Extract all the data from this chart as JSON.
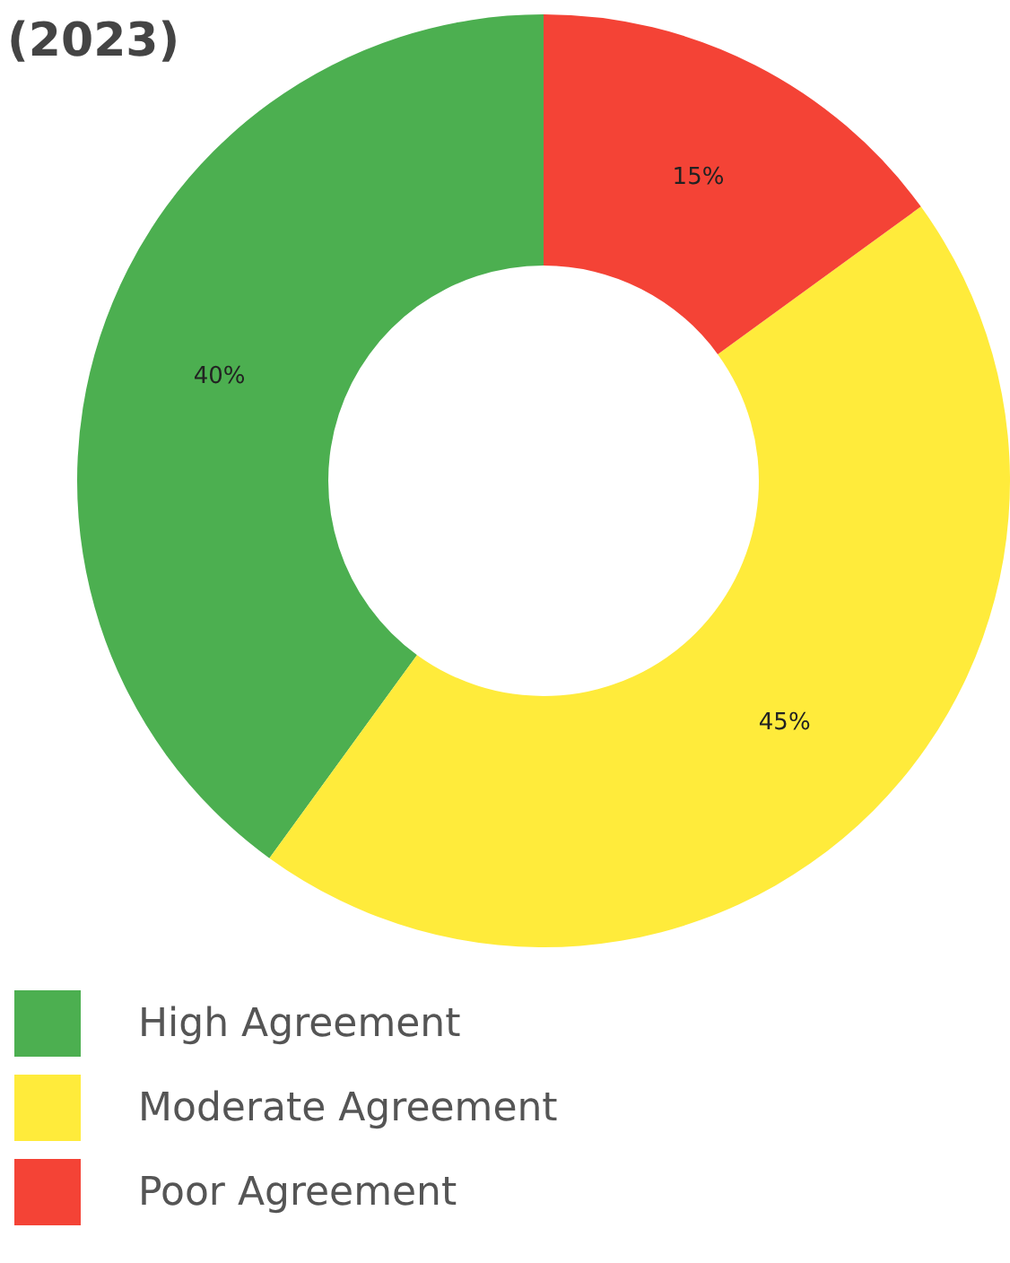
{
  "chart_data": {
    "type": "donut",
    "title": "(2023)",
    "categories": [
      "High Agreement",
      "Moderate Agreement",
      "Poor Agreement"
    ],
    "values": [
      40,
      45,
      15
    ],
    "value_labels": [
      "40%",
      "45%",
      "15%"
    ],
    "colors": [
      "#4caf50",
      "#ffeb3b",
      "#f44336"
    ],
    "legend": "bottom left"
  }
}
